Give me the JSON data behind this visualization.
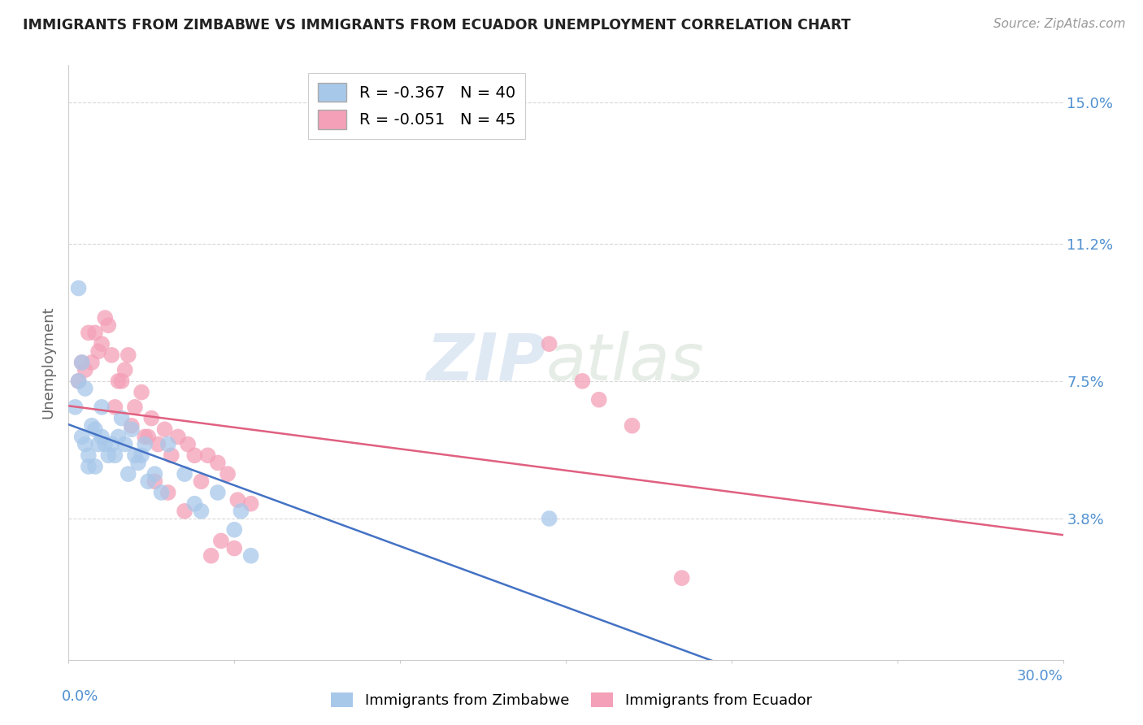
{
  "title": "IMMIGRANTS FROM ZIMBABWE VS IMMIGRANTS FROM ECUADOR UNEMPLOYMENT CORRELATION CHART",
  "source": "Source: ZipAtlas.com",
  "ylabel": "Unemployment",
  "yticks": [
    0.0,
    0.038,
    0.075,
    0.112,
    0.15
  ],
  "ytick_labels": [
    "",
    "3.8%",
    "7.5%",
    "11.2%",
    "15.0%"
  ],
  "xlim": [
    0.0,
    0.3
  ],
  "ylim": [
    0.0,
    0.16
  ],
  "watermark_zip": "ZIP",
  "watermark_atlas": "atlas",
  "zimbabwe_x": [
    0.002,
    0.003,
    0.004,
    0.005,
    0.006,
    0.007,
    0.008,
    0.009,
    0.01,
    0.011,
    0.012,
    0.013,
    0.014,
    0.015,
    0.016,
    0.017,
    0.018,
    0.019,
    0.02,
    0.021,
    0.022,
    0.024,
    0.026,
    0.028,
    0.03,
    0.035,
    0.04,
    0.045,
    0.05,
    0.055,
    0.003,
    0.004,
    0.005,
    0.006,
    0.008,
    0.01,
    0.023,
    0.038,
    0.052,
    0.145
  ],
  "zimbabwe_y": [
    0.068,
    0.075,
    0.06,
    0.058,
    0.055,
    0.063,
    0.062,
    0.058,
    0.06,
    0.058,
    0.055,
    0.058,
    0.055,
    0.06,
    0.065,
    0.058,
    0.05,
    0.062,
    0.055,
    0.053,
    0.055,
    0.048,
    0.05,
    0.045,
    0.058,
    0.05,
    0.04,
    0.045,
    0.035,
    0.028,
    0.1,
    0.08,
    0.073,
    0.052,
    0.052,
    0.068,
    0.058,
    0.042,
    0.04,
    0.038
  ],
  "ecuador_x": [
    0.003,
    0.005,
    0.007,
    0.008,
    0.01,
    0.012,
    0.013,
    0.015,
    0.017,
    0.018,
    0.02,
    0.022,
    0.024,
    0.025,
    0.027,
    0.029,
    0.031,
    0.033,
    0.036,
    0.038,
    0.04,
    0.042,
    0.045,
    0.048,
    0.051,
    0.055,
    0.004,
    0.006,
    0.009,
    0.011,
    0.014,
    0.016,
    0.019,
    0.023,
    0.026,
    0.03,
    0.035,
    0.043,
    0.046,
    0.05,
    0.145,
    0.155,
    0.16,
    0.17,
    0.185
  ],
  "ecuador_y": [
    0.075,
    0.078,
    0.08,
    0.088,
    0.085,
    0.09,
    0.082,
    0.075,
    0.078,
    0.082,
    0.068,
    0.072,
    0.06,
    0.065,
    0.058,
    0.062,
    0.055,
    0.06,
    0.058,
    0.055,
    0.048,
    0.055,
    0.053,
    0.05,
    0.043,
    0.042,
    0.08,
    0.088,
    0.083,
    0.092,
    0.068,
    0.075,
    0.063,
    0.06,
    0.048,
    0.045,
    0.04,
    0.028,
    0.032,
    0.03,
    0.085,
    0.075,
    0.07,
    0.063,
    0.022
  ],
  "zimbabwe_color": "#a8c8ea",
  "ecuador_color": "#f4a0b8",
  "zimbabwe_line_color": "#4472c4",
  "ecuador_line_color": "#e06080",
  "tick_color": "#5090d0",
  "background_color": "#ffffff",
  "grid_color": "#d8d8d8",
  "legend_zim_label": "R = -0.367   N = 40",
  "legend_ecu_label": "R = -0.051   N = 45",
  "bottom_zim_label": "Immigrants from Zimbabwe",
  "bottom_ecu_label": "Immigrants from Ecuador"
}
